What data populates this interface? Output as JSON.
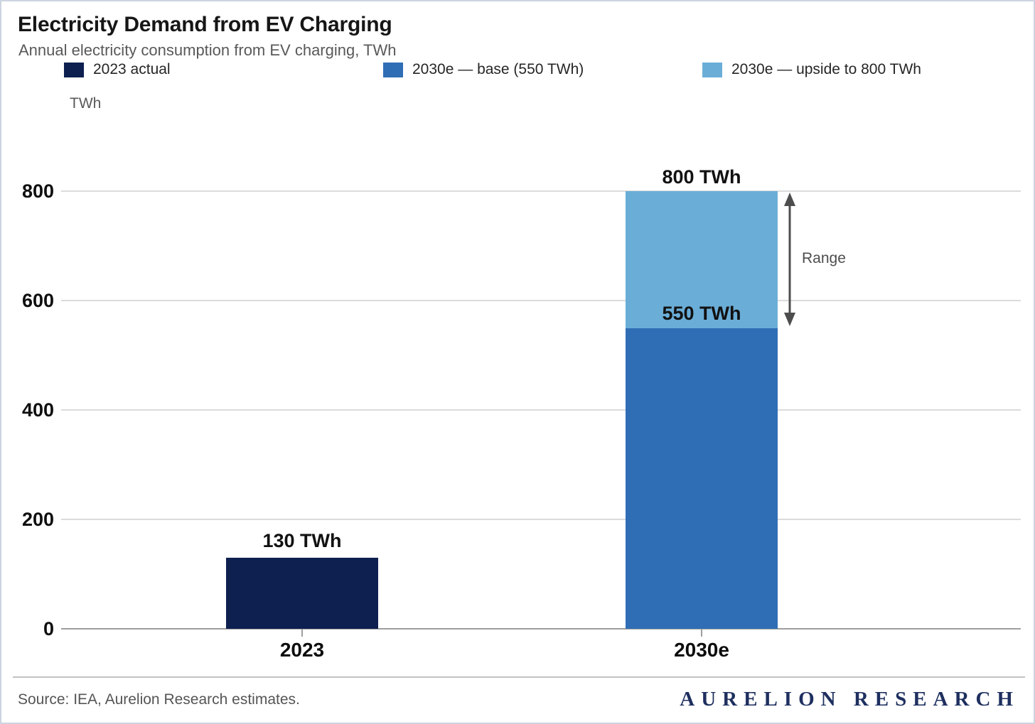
{
  "chart_data": {
    "type": "bar",
    "stacked": true,
    "title": "Electricity Demand from EV Charging",
    "subtitle": "Annual electricity consumption from EV charging, TWh",
    "ylabel": "TWh",
    "categories": [
      "2023",
      "2030e"
    ],
    "series": [
      {
        "name": "2023 actual",
        "color": "#0e2050",
        "values": [
          130,
          0
        ]
      },
      {
        "name": "2030e — base (550 TWh)",
        "color": "#2f6eb5",
        "values": [
          0,
          550
        ]
      },
      {
        "name": "2030e — upside to 800 TWh",
        "color": "#6aaed8",
        "values": [
          0,
          250
        ]
      }
    ],
    "totals": [
      130,
      800
    ],
    "y_ticks": [
      0,
      200,
      400,
      600,
      800
    ],
    "ylim": [
      0,
      800
    ],
    "grid": "horizontal",
    "legend_position": "top",
    "annotations": {
      "bar_2023": "130 TWh",
      "bar_2030_top": "800 TWh",
      "bar_2030_base": "550 TWh",
      "range": "Range"
    }
  },
  "footer": {
    "source": "Source: IEA, Aurelion Research estimates.",
    "brand": "AURELION RESEARCH"
  },
  "ui_colors": {
    "arrow_gray": "#4d4d4d",
    "gridline": "#dbdbdb",
    "axis": "#9e9e9e",
    "brand_navy": "#1e2f5f"
  }
}
